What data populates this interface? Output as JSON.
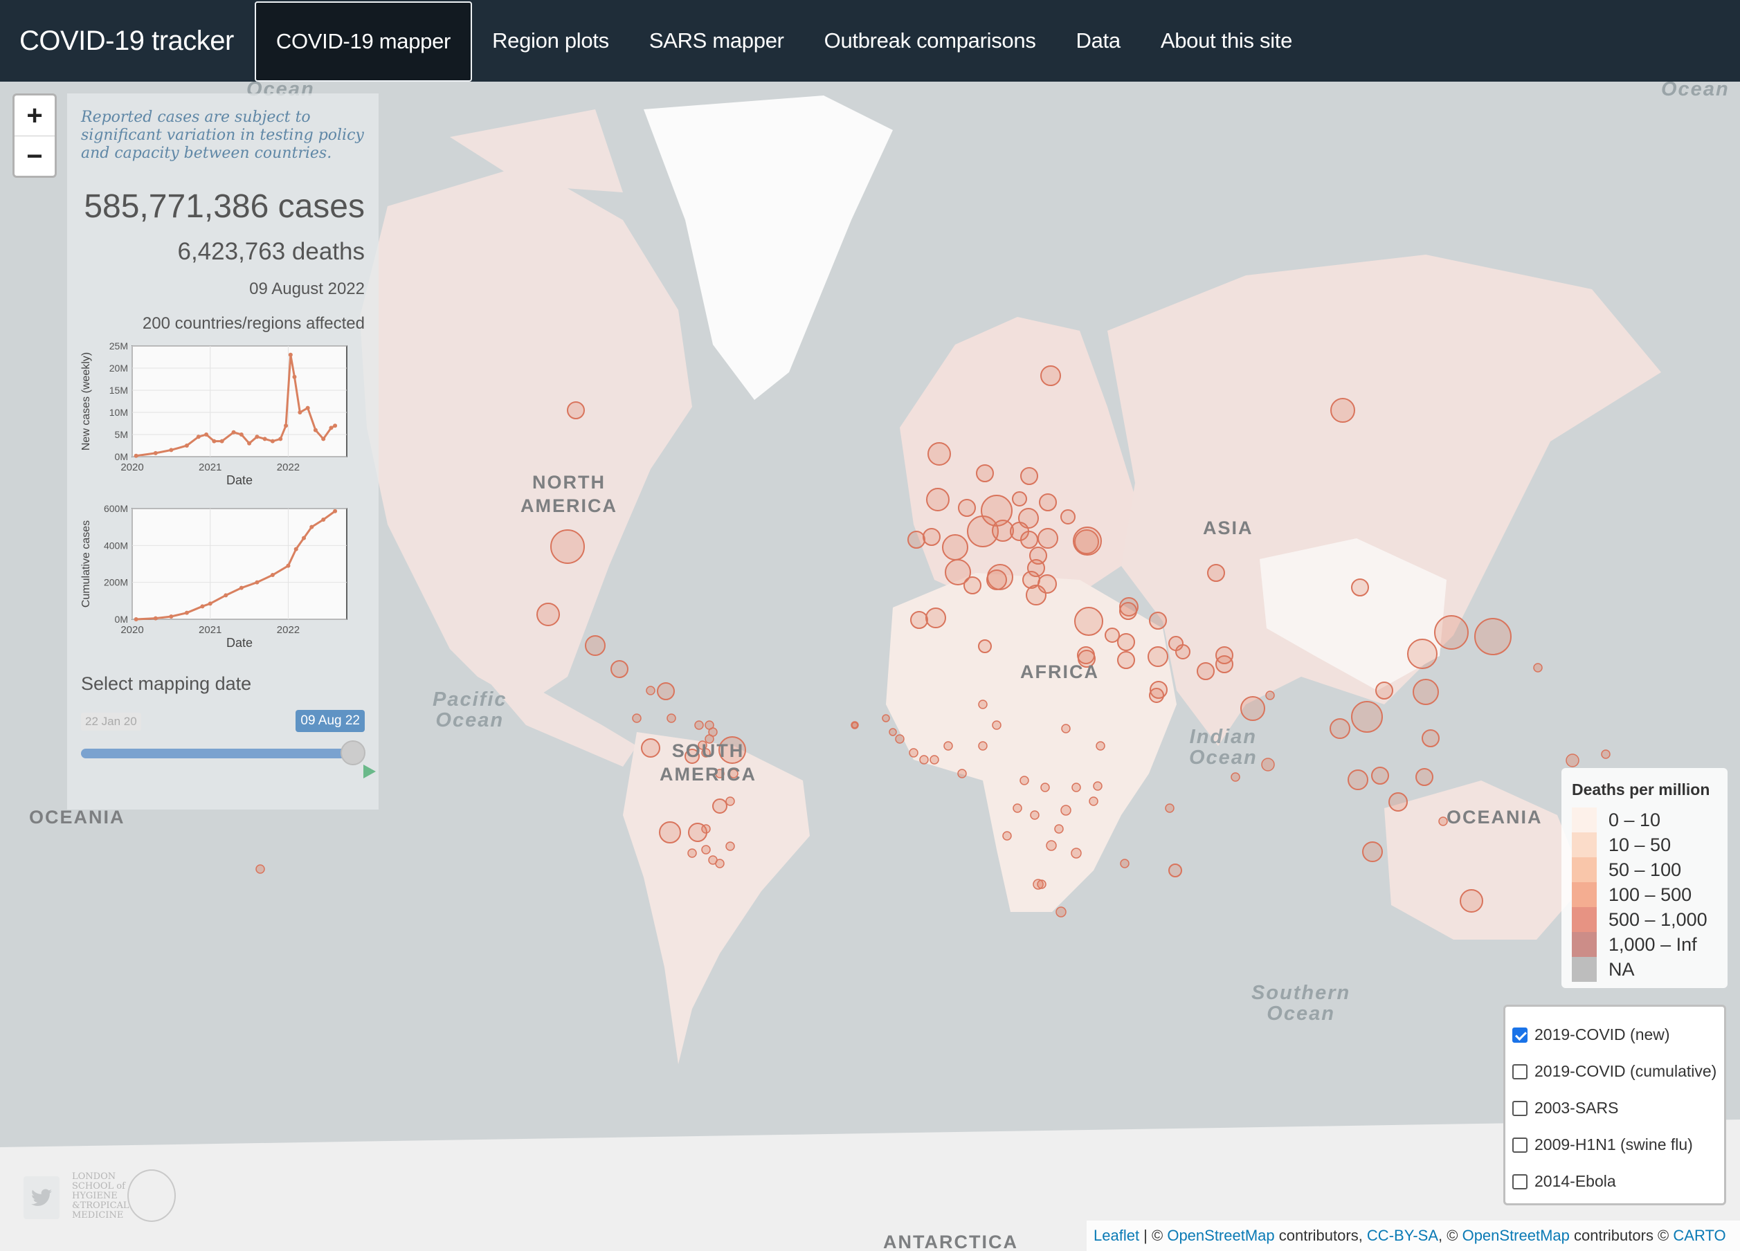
{
  "navbar": {
    "brand": "COVID-19 tracker",
    "items": [
      {
        "label": "COVID-19 mapper",
        "active": true
      },
      {
        "label": "Region plots",
        "active": false
      },
      {
        "label": "SARS mapper",
        "active": false
      },
      {
        "label": "Outbreak comparisons",
        "active": false
      },
      {
        "label": "Data",
        "active": false
      },
      {
        "label": "About this site",
        "active": false
      }
    ]
  },
  "map": {
    "ocean_labels": [
      "Ocean",
      "Ocean",
      "Pacific",
      "Ocean",
      "Indian",
      "Ocean",
      "Southern",
      "Ocean"
    ],
    "continent_labels": [
      "NORTH",
      "AMERICA",
      "SOUTH",
      "AMERICA",
      "AFRICA",
      "ASIA",
      "OCEANIA",
      "OCEANIA",
      "ANTARCTICA"
    ]
  },
  "zoom": {
    "plus": "+",
    "minus": "−"
  },
  "panel": {
    "note": "Reported cases are subject to significant variation in testing policy and capacity between countries.",
    "cases": "585,771,386 cases",
    "deaths": "6,423,763 deaths",
    "date": "09 August 2022",
    "affected": "200 countries/regions affected",
    "select_label": "Select mapping date",
    "slider": {
      "min": "22 Jan 20",
      "max": "09 Aug 22",
      "position": 1.0
    }
  },
  "chart_data": [
    {
      "type": "line",
      "xlabel": "Date",
      "ylabel": "New cases (weekly)",
      "x_ticks": [
        "2020",
        "2021",
        "2022"
      ],
      "y_ticks": [
        "0M",
        "5M",
        "10M",
        "15M",
        "20M",
        "25M"
      ],
      "ylim": [
        0,
        25
      ],
      "x": [
        2020.05,
        2020.3,
        2020.5,
        2020.7,
        2020.85,
        2020.95,
        2021.05,
        2021.15,
        2021.3,
        2021.4,
        2021.5,
        2021.6,
        2021.7,
        2021.8,
        2021.9,
        2021.97,
        2022.03,
        2022.08,
        2022.15,
        2022.25,
        2022.35,
        2022.45,
        2022.55,
        2022.6
      ],
      "values": [
        0.2,
        0.8,
        1.5,
        2.5,
        4.5,
        5.0,
        3.5,
        3.5,
        5.5,
        5.0,
        3.0,
        4.5,
        4.0,
        3.5,
        4.0,
        7.0,
        23.0,
        18.0,
        10.0,
        11.0,
        6.0,
        4.0,
        6.5,
        7.0
      ]
    },
    {
      "type": "line",
      "xlabel": "Date",
      "ylabel": "Cumulative cases",
      "x_ticks": [
        "2020",
        "2021",
        "2022"
      ],
      "y_ticks": [
        "0M",
        "200M",
        "400M",
        "600M"
      ],
      "ylim": [
        0,
        600
      ],
      "x": [
        2020.05,
        2020.3,
        2020.5,
        2020.7,
        2020.9,
        2021.0,
        2021.2,
        2021.4,
        2021.6,
        2021.8,
        2022.0,
        2022.1,
        2022.2,
        2022.3,
        2022.45,
        2022.6
      ],
      "values": [
        0,
        5,
        15,
        35,
        70,
        85,
        130,
        170,
        200,
        240,
        290,
        380,
        440,
        500,
        540,
        586
      ]
    }
  ],
  "legend": {
    "title": "Deaths per million",
    "items": [
      {
        "label": "0 – 10",
        "color": "#fdf1ea"
      },
      {
        "label": "10 – 50",
        "color": "#fbdcc9"
      },
      {
        "label": "50 – 100",
        "color": "#f9c6aa"
      },
      {
        "label": "100 – 500",
        "color": "#f4ad91"
      },
      {
        "label": "500 – 1,000",
        "color": "#e79383"
      },
      {
        "label": "1,000 – Inf",
        "color": "#cc8d88"
      },
      {
        "label": "NA",
        "color": "#bdbdbd"
      }
    ]
  },
  "layers": [
    {
      "label": "2019-COVID (new)",
      "checked": true
    },
    {
      "label": "2019-COVID (cumulative)",
      "checked": false
    },
    {
      "label": "2003-SARS",
      "checked": false
    },
    {
      "label": "2009-H1N1 (swine flu)",
      "checked": false
    },
    {
      "label": "2014-Ebola",
      "checked": false
    }
  ],
  "attribution": {
    "leaflet": "Leaflet",
    "sep1": " | © ",
    "osm1": "OpenStreetMap",
    "contrib1": " contributors, ",
    "ccbysa": "CC-BY-SA",
    "sep2": ", © ",
    "osm2": "OpenStreetMap",
    "contrib2": " contributors © ",
    "carto": "CARTO"
  },
  "logos": {
    "lshtm_lines": [
      "LONDON",
      "SCHOOL of",
      "HYGIENE",
      "&TROPICAL",
      "MEDICINE"
    ]
  },
  "colors": {
    "navbar": "#1f2d39",
    "bubble": "#e07a5f",
    "land": "#f2e4df",
    "ocean": "#cfd4d6",
    "accent": "#5f93c4"
  }
}
